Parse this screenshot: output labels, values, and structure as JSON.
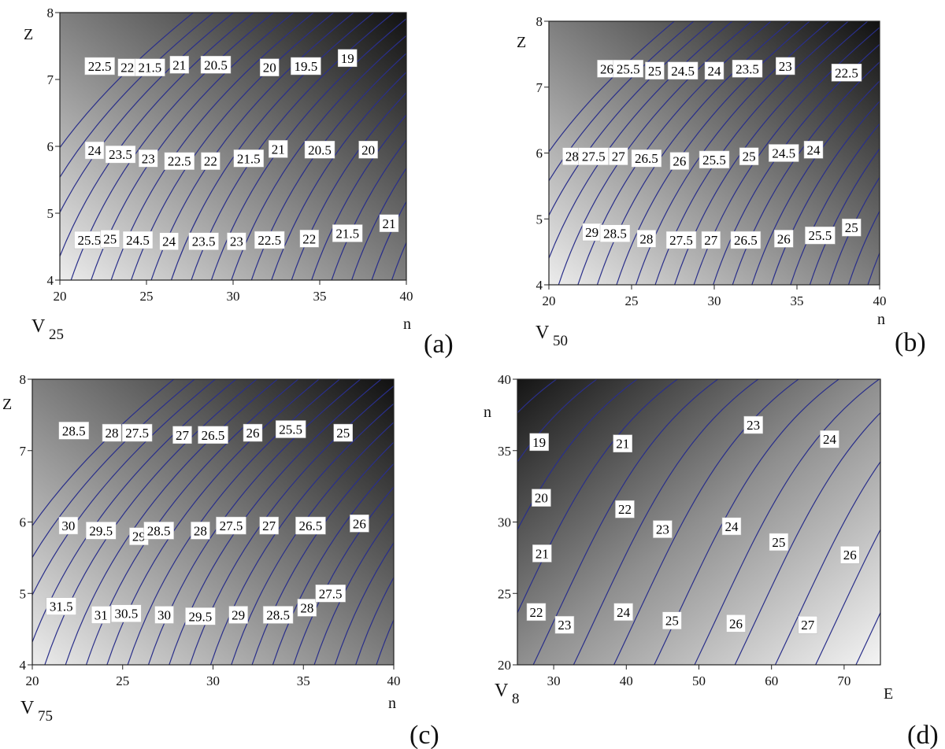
{
  "chart_data": [
    {
      "type": "contour",
      "panel_label": "(a)",
      "variable": "V",
      "variable_sub": "25",
      "xlabel": "n",
      "ylabel": "Z",
      "xlim": [
        20,
        40
      ],
      "ylim": [
        4,
        8
      ],
      "xticks": [
        20,
        25,
        30,
        35,
        40
      ],
      "yticks": [
        4,
        5,
        6,
        7,
        8
      ],
      "contour_labels": [
        {
          "text": "22.5",
          "x": 22.3,
          "y": 7.2
        },
        {
          "text": "22",
          "x": 23.9,
          "y": 7.18
        },
        {
          "text": "21.5",
          "x": 25.2,
          "y": 7.18
        },
        {
          "text": "21",
          "x": 26.9,
          "y": 7.22
        },
        {
          "text": "20.5",
          "x": 29.0,
          "y": 7.22
        },
        {
          "text": "20",
          "x": 32.1,
          "y": 7.18
        },
        {
          "text": "19.5",
          "x": 34.2,
          "y": 7.2
        },
        {
          "text": "19",
          "x": 36.6,
          "y": 7.32
        },
        {
          "text": "24",
          "x": 22.0,
          "y": 5.94
        },
        {
          "text": "23.5",
          "x": 23.5,
          "y": 5.88
        },
        {
          "text": "23",
          "x": 25.1,
          "y": 5.82
        },
        {
          "text": "22.5",
          "x": 26.9,
          "y": 5.78
        },
        {
          "text": "22",
          "x": 28.7,
          "y": 5.78
        },
        {
          "text": "21.5",
          "x": 30.9,
          "y": 5.82
        },
        {
          "text": "21",
          "x": 32.6,
          "y": 5.96
        },
        {
          "text": "20.5",
          "x": 35.0,
          "y": 5.95
        },
        {
          "text": "20",
          "x": 37.8,
          "y": 5.95
        },
        {
          "text": "25.5",
          "x": 21.7,
          "y": 4.6
        },
        {
          "text": "25",
          "x": 22.9,
          "y": 4.62
        },
        {
          "text": "24.5",
          "x": 24.5,
          "y": 4.6
        },
        {
          "text": "24",
          "x": 26.3,
          "y": 4.58
        },
        {
          "text": "23.5",
          "x": 28.3,
          "y": 4.58
        },
        {
          "text": "23",
          "x": 30.2,
          "y": 4.58
        },
        {
          "text": "22.5",
          "x": 32.1,
          "y": 4.6
        },
        {
          "text": "22",
          "x": 34.4,
          "y": 4.62
        },
        {
          "text": "21.5",
          "x": 36.6,
          "y": 4.7
        },
        {
          "text": "21",
          "x": 39.0,
          "y": 4.85
        }
      ]
    },
    {
      "type": "contour",
      "panel_label": "(b)",
      "variable": "V",
      "variable_sub": "50",
      "xlabel": "n",
      "ylabel": "Z",
      "xlim": [
        20,
        40
      ],
      "ylim": [
        4,
        8
      ],
      "xticks": [
        20,
        25,
        30,
        35,
        40
      ],
      "yticks": [
        4,
        5,
        6,
        7,
        8
      ],
      "contour_labels": [
        {
          "text": "26",
          "x": 23.5,
          "y": 7.28
        },
        {
          "text": "25.5",
          "x": 24.8,
          "y": 7.28
        },
        {
          "text": "25",
          "x": 26.4,
          "y": 7.25
        },
        {
          "text": "24.5",
          "x": 28.1,
          "y": 7.25
        },
        {
          "text": "24",
          "x": 30.0,
          "y": 7.25
        },
        {
          "text": "23.5",
          "x": 32.0,
          "y": 7.28
        },
        {
          "text": "23",
          "x": 34.3,
          "y": 7.32
        },
        {
          "text": "22.5",
          "x": 38.0,
          "y": 7.22
        },
        {
          "text": "28",
          "x": 21.4,
          "y": 5.95
        },
        {
          "text": "27.5",
          "x": 22.7,
          "y": 5.95
        },
        {
          "text": "27",
          "x": 24.2,
          "y": 5.95
        },
        {
          "text": "26.5",
          "x": 25.9,
          "y": 5.92
        },
        {
          "text": "26",
          "x": 27.9,
          "y": 5.88
        },
        {
          "text": "25.5",
          "x": 30.0,
          "y": 5.9
        },
        {
          "text": "25",
          "x": 32.1,
          "y": 5.95
        },
        {
          "text": "24.5",
          "x": 34.2,
          "y": 6.0
        },
        {
          "text": "24",
          "x": 36.0,
          "y": 6.05
        },
        {
          "text": "29",
          "x": 22.6,
          "y": 4.8
        },
        {
          "text": "28.5",
          "x": 24.0,
          "y": 4.78
        },
        {
          "text": "28",
          "x": 25.9,
          "y": 4.7
        },
        {
          "text": "27.5",
          "x": 28.0,
          "y": 4.68
        },
        {
          "text": "27",
          "x": 29.8,
          "y": 4.68
        },
        {
          "text": "26.5",
          "x": 31.9,
          "y": 4.68
        },
        {
          "text": "26",
          "x": 34.2,
          "y": 4.7
        },
        {
          "text": "25.5",
          "x": 36.4,
          "y": 4.75
        },
        {
          "text": "25",
          "x": 38.3,
          "y": 4.87
        }
      ]
    },
    {
      "type": "contour",
      "panel_label": "(c)",
      "variable": "V",
      "variable_sub": "75",
      "xlabel": "n",
      "ylabel": "Z",
      "xlim": [
        20,
        40
      ],
      "ylim": [
        4,
        8
      ],
      "xticks": [
        20,
        25,
        30,
        35,
        40
      ],
      "yticks": [
        4,
        5,
        6,
        7,
        8
      ],
      "contour_labels": [
        {
          "text": "28.5",
          "x": 22.3,
          "y": 7.28
        },
        {
          "text": "28",
          "x": 24.4,
          "y": 7.25
        },
        {
          "text": "27.5",
          "x": 25.8,
          "y": 7.25
        },
        {
          "text": "27",
          "x": 28.3,
          "y": 7.22
        },
        {
          "text": "26.5",
          "x": 30.0,
          "y": 7.22
        },
        {
          "text": "26",
          "x": 32.2,
          "y": 7.25
        },
        {
          "text": "25.5",
          "x": 34.3,
          "y": 7.3
        },
        {
          "text": "25",
          "x": 37.2,
          "y": 7.25
        },
        {
          "text": "30",
          "x": 22.0,
          "y": 5.95
        },
        {
          "text": "29.5",
          "x": 23.8,
          "y": 5.88
        },
        {
          "text": "29",
          "x": 25.9,
          "y": 5.8
        },
        {
          "text": "28.5",
          "x": 27.0,
          "y": 5.88
        },
        {
          "text": "28",
          "x": 29.3,
          "y": 5.88
        },
        {
          "text": "27.5",
          "x": 31.0,
          "y": 5.95
        },
        {
          "text": "27",
          "x": 33.1,
          "y": 5.95
        },
        {
          "text": "26.5",
          "x": 35.4,
          "y": 5.95
        },
        {
          "text": "26",
          "x": 38.1,
          "y": 5.98
        },
        {
          "text": "31.5",
          "x": 21.6,
          "y": 4.82
        },
        {
          "text": "31",
          "x": 23.8,
          "y": 4.7
        },
        {
          "text": "30.5",
          "x": 25.2,
          "y": 4.72
        },
        {
          "text": "30",
          "x": 27.3,
          "y": 4.7
        },
        {
          "text": "29.5",
          "x": 29.3,
          "y": 4.68
        },
        {
          "text": "29",
          "x": 31.4,
          "y": 4.7
        },
        {
          "text": "28.5",
          "x": 33.6,
          "y": 4.7
        },
        {
          "text": "28",
          "x": 35.2,
          "y": 4.8
        },
        {
          "text": "27.5",
          "x": 36.5,
          "y": 5.0
        }
      ]
    },
    {
      "type": "contour",
      "panel_label": "(d)",
      "variable": "V",
      "variable_sub": "8",
      "xlabel": "E",
      "ylabel": "n",
      "xlim": [
        25,
        75
      ],
      "ylim": [
        20,
        40
      ],
      "xticks": [
        30,
        40,
        50,
        60,
        70
      ],
      "yticks": [
        20,
        25,
        30,
        35,
        40
      ],
      "contour_labels": [
        {
          "text": "19",
          "x": 28.0,
          "y": 35.6
        },
        {
          "text": "21",
          "x": 39.5,
          "y": 35.5
        },
        {
          "text": "23",
          "x": 57.5,
          "y": 36.8
        },
        {
          "text": "24",
          "x": 68.0,
          "y": 35.8
        },
        {
          "text": "20",
          "x": 28.3,
          "y": 31.7
        },
        {
          "text": "22",
          "x": 39.8,
          "y": 30.9
        },
        {
          "text": "23",
          "x": 45.0,
          "y": 29.5
        },
        {
          "text": "24",
          "x": 54.5,
          "y": 29.7
        },
        {
          "text": "25",
          "x": 61.0,
          "y": 28.6
        },
        {
          "text": "26",
          "x": 70.8,
          "y": 27.7
        },
        {
          "text": "21",
          "x": 28.4,
          "y": 27.8
        },
        {
          "text": "22",
          "x": 27.6,
          "y": 23.7
        },
        {
          "text": "23",
          "x": 31.5,
          "y": 22.8
        },
        {
          "text": "24",
          "x": 39.6,
          "y": 23.7
        },
        {
          "text": "25",
          "x": 46.3,
          "y": 23.1
        },
        {
          "text": "26",
          "x": 55.1,
          "y": 22.9
        },
        {
          "text": "27",
          "x": 65.0,
          "y": 22.8
        }
      ]
    }
  ]
}
